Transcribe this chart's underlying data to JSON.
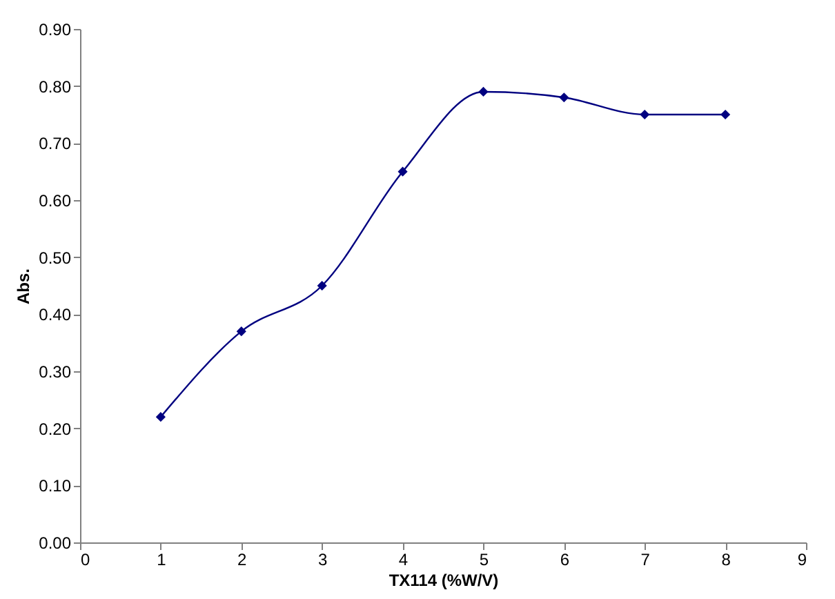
{
  "chart_data": {
    "type": "line",
    "xlabel": "TX114 (%W/V)",
    "ylabel": "Abs.",
    "x": [
      1,
      2,
      3,
      4,
      5,
      6,
      7,
      8
    ],
    "series": [
      {
        "color": "#000080",
        "values": [
          0.22,
          0.37,
          0.45,
          0.65,
          0.79,
          0.78,
          0.75,
          0.75
        ]
      }
    ],
    "xlim": [
      0,
      9
    ],
    "xticks": [
      0,
      1,
      2,
      3,
      4,
      5,
      6,
      7,
      8,
      9
    ],
    "ylim": [
      0,
      0.9
    ],
    "yticks": [
      {
        "value": 0,
        "label": "0.00"
      },
      {
        "value": 0.1,
        "label": "0.10"
      },
      {
        "value": 0.2,
        "label": "0.20"
      },
      {
        "value": 0.3,
        "label": "0.30"
      },
      {
        "value": 0.4,
        "label": "0.40"
      },
      {
        "value": 0.5,
        "label": "0.50"
      },
      {
        "value": 0.6,
        "label": "0.60"
      },
      {
        "value": 0.7,
        "label": "0.70"
      },
      {
        "value": 0.8,
        "label": "0.80"
      },
      {
        "value": 0.9,
        "label": "0.90"
      }
    ],
    "grid": false,
    "marker": "diamond",
    "line_style": "solid"
  }
}
